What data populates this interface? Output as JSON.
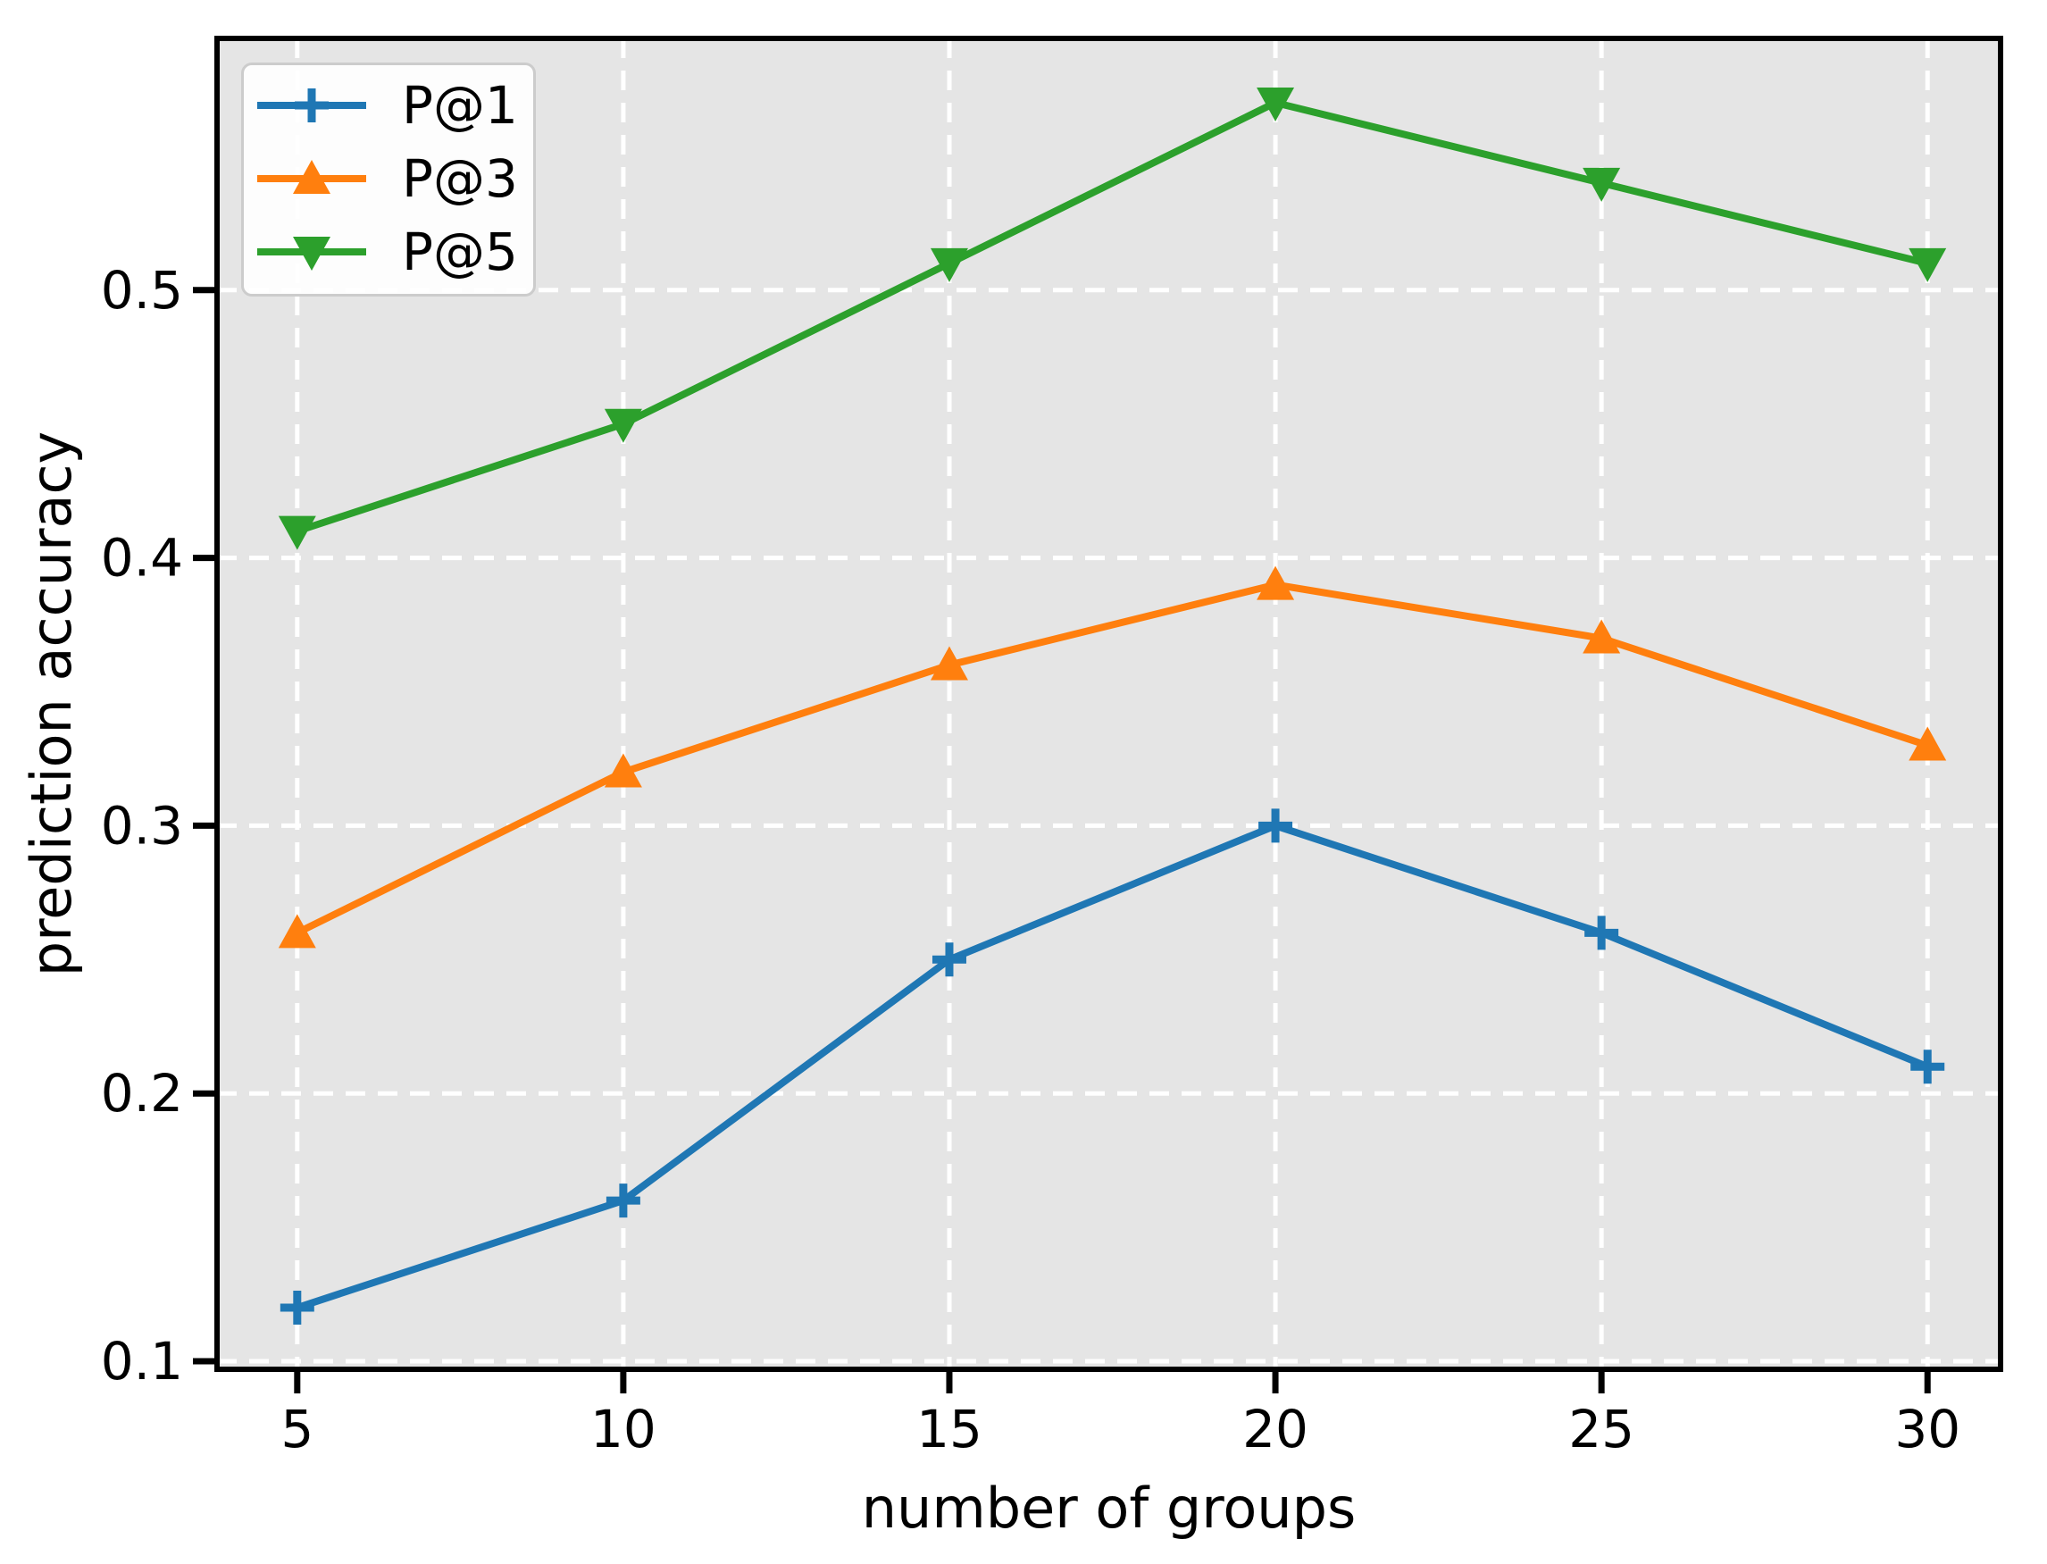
{
  "chart_data": {
    "type": "line",
    "xlabel": "number of groups",
    "ylabel": "prediction accuracy",
    "x": [
      5,
      10,
      15,
      20,
      25,
      30
    ],
    "x_tick_labels": [
      "5",
      "10",
      "15",
      "20",
      "25",
      "30"
    ],
    "y_ticks": [
      0.1,
      0.2,
      0.3,
      0.4,
      0.5
    ],
    "y_tick_labels": [
      "0.1",
      "0.2",
      "0.3",
      "0.4",
      "0.5"
    ],
    "xlim": [
      3.77,
      31.12
    ],
    "ylim": [
      0.097,
      0.594
    ],
    "grid": "white dashed, on gray plot background",
    "legend_position": "upper-left",
    "series": [
      {
        "name": "P@1",
        "marker": "plus",
        "color": "#1f77b4",
        "values": [
          0.12,
          0.16,
          0.25,
          0.3,
          0.26,
          0.21
        ]
      },
      {
        "name": "P@3",
        "marker": "triangle-up",
        "color": "#ff7f0e",
        "values": [
          0.26,
          0.32,
          0.36,
          0.39,
          0.37,
          0.33
        ]
      },
      {
        "name": "P@5",
        "marker": "triangle-down",
        "color": "#2ca02c",
        "values": [
          0.41,
          0.45,
          0.51,
          0.57,
          0.54,
          0.51
        ]
      }
    ],
    "colors": {
      "plot_bg": "#e5e5e5",
      "grid": "#ffffff",
      "spine": "#000000",
      "tick": "#000000",
      "legend_border": "#cccccc",
      "legend_bg": "#ffffff"
    }
  }
}
